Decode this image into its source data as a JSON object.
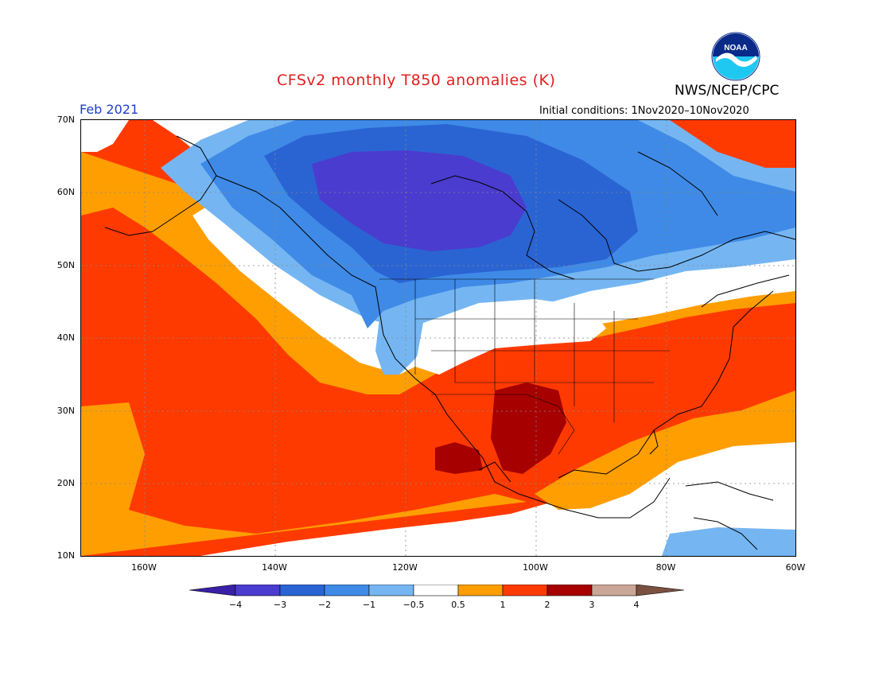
{
  "title": "CFSv2 monthly T850 anomalies (K)",
  "organization": "NWS/NCEP/CPC",
  "period": "Feb 2021",
  "initial_conditions": "Initial conditions: 1Nov2020–10Nov2020",
  "logo_text": "NOAA",
  "latitudes": [
    "70N",
    "60N",
    "50N",
    "40N",
    "30N",
    "20N",
    "10N"
  ],
  "longitudes": [
    "160W",
    "140W",
    "120W",
    "100W",
    "80W",
    "60W"
  ],
  "colorbar": {
    "labels": [
      "−4",
      "−3",
      "−2",
      "−1",
      "−0.5",
      "0.5",
      "1",
      "2",
      "3",
      "4"
    ],
    "colors": [
      "#3a1fa8",
      "#4a3ccf",
      "#2a64d3",
      "#3f8ae6",
      "#75b6f2",
      "#ffffff",
      "#ff9e00",
      "#ff3a00",
      "#a60000",
      "#c9a696",
      "#7a5040"
    ]
  },
  "legend_colors": {
    "lt_minus3": "#4a3ccf",
    "minus3_to_minus2": "#2a64d3",
    "minus2_to_minus1": "#3f8ae6",
    "minus1_to_minus05": "#75b6f2",
    "neutral": "#ffffff",
    "p05_to_1": "#ff9e00",
    "p1_to_2": "#ff3a00",
    "p2_to_3": "#a60000"
  }
}
